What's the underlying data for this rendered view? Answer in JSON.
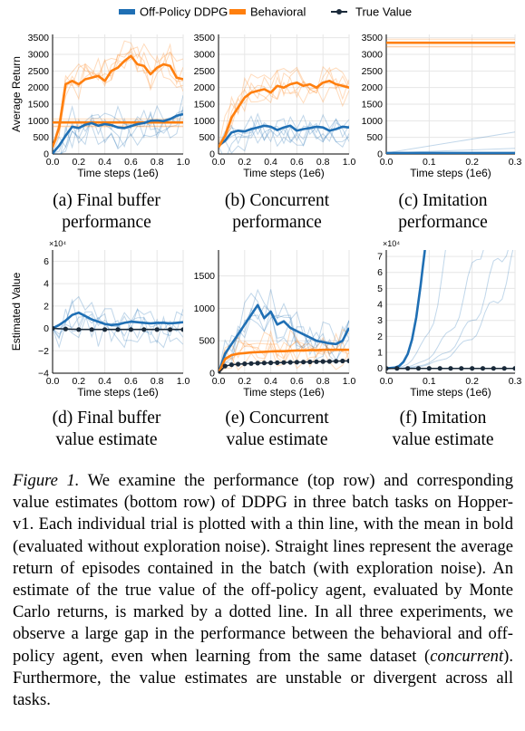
{
  "legend": {
    "offpolicy": "Off-Policy DDPG",
    "behavioral": "Behavioral",
    "truevalue": "True Value"
  },
  "colors": {
    "offpolicy": "#1f6fb4",
    "behavioral": "#ff7f0e",
    "truevalue": "#1a2a3a",
    "grid": "#e6e6e6"
  },
  "captions": {
    "a": [
      "(a) Final buffer",
      "performance"
    ],
    "b": [
      "(b) Concurrent",
      "performance"
    ],
    "c": [
      "(c) Imitation",
      "performance"
    ],
    "d": [
      "(d) Final buffer",
      "value estimate"
    ],
    "e": [
      "(e) Concurrent",
      "value estimate"
    ],
    "f": [
      "(f) Imitation",
      "value estimate"
    ]
  },
  "figure_caption": {
    "label": "Figure 1.",
    "text_before": " We examine the performance (top row) and corresponding value estimates (bottom row) of DDPG in three batch tasks on Hopper-v1. Each individual trial is plotted with a thin line, with the mean in bold (evaluated without exploration noise). Straight lines represent the average return of episodes contained in the batch (with exploration noise). An estimate of the true value of the off-policy agent, evaluated by Monte Carlo returns, is marked by a dotted line. In all three experiments, we observe a large gap in the performance between the behavioral and off-policy agent, even when learning from the same dataset (",
    "emph": "concurrent",
    "text_after": "). Furthermore, the value estimates are unstable or divergent across all tasks."
  },
  "chart_data": [
    {
      "id": "a",
      "type": "line",
      "xlabel": "Time steps (1e6)",
      "ylabel": "Average Return",
      "xlim": [
        0,
        1.0
      ],
      "ylim": [
        0,
        3600
      ],
      "xticks": [
        "0.0",
        "0.2",
        "0.4",
        "0.6",
        "0.8",
        "1.0"
      ],
      "yticks": [
        "0",
        "500",
        "1000",
        "1500",
        "2000",
        "2500",
        "3000",
        "3500"
      ],
      "grid": true,
      "series": [
        {
          "name": "Off-Policy DDPG",
          "role": "mean",
          "x": [
            0,
            0.05,
            0.1,
            0.15,
            0.2,
            0.25,
            0.3,
            0.35,
            0.4,
            0.45,
            0.5,
            0.55,
            0.6,
            0.65,
            0.7,
            0.75,
            0.8,
            0.85,
            0.9,
            0.95,
            1.0
          ],
          "y": [
            20,
            250,
            550,
            820,
            780,
            880,
            930,
            850,
            900,
            870,
            800,
            780,
            840,
            900,
            930,
            1000,
            1010,
            990,
            1050,
            1150,
            1200
          ]
        },
        {
          "name": "Behavioral",
          "role": "mean",
          "x": [
            0,
            0.05,
            0.1,
            0.15,
            0.2,
            0.25,
            0.3,
            0.35,
            0.4,
            0.45,
            0.5,
            0.55,
            0.6,
            0.65,
            0.7,
            0.75,
            0.8,
            0.85,
            0.9,
            0.95,
            1.0
          ],
          "y": [
            200,
            800,
            2100,
            2200,
            2100,
            2250,
            2300,
            2350,
            2200,
            2500,
            2600,
            2800,
            2950,
            2700,
            2650,
            2400,
            2600,
            2700,
            2650,
            2300,
            2250
          ]
        },
        {
          "name": "Behavioral",
          "role": "batch-average",
          "x": [
            0,
            1.0
          ],
          "y": [
            950,
            950
          ]
        }
      ]
    },
    {
      "id": "b",
      "type": "line",
      "xlabel": "Time steps (1e6)",
      "xlim": [
        0,
        1.0
      ],
      "ylim": [
        0,
        3600
      ],
      "xticks": [
        "0.0",
        "0.2",
        "0.4",
        "0.6",
        "0.8",
        "1.0"
      ],
      "yticks": [
        "0",
        "500",
        "1000",
        "1500",
        "2000",
        "2500",
        "3000",
        "3500"
      ],
      "grid": true,
      "series": [
        {
          "name": "Off-Policy DDPG",
          "role": "mean",
          "x": [
            0,
            0.05,
            0.1,
            0.15,
            0.2,
            0.25,
            0.3,
            0.35,
            0.4,
            0.45,
            0.5,
            0.55,
            0.6,
            0.65,
            0.7,
            0.75,
            0.8,
            0.85,
            0.9,
            0.95,
            1.0
          ],
          "y": [
            250,
            400,
            650,
            700,
            680,
            750,
            800,
            850,
            820,
            720,
            800,
            850,
            700,
            750,
            780,
            820,
            800,
            700,
            750,
            820,
            800
          ]
        },
        {
          "name": "Behavioral",
          "role": "mean",
          "x": [
            0,
            0.05,
            0.1,
            0.15,
            0.2,
            0.25,
            0.3,
            0.35,
            0.4,
            0.45,
            0.5,
            0.55,
            0.6,
            0.65,
            0.7,
            0.75,
            0.8,
            0.85,
            0.9,
            0.95,
            1.0
          ],
          "y": [
            200,
            550,
            1100,
            1400,
            1700,
            1850,
            1900,
            1950,
            1850,
            2050,
            2000,
            2100,
            2150,
            2050,
            2100,
            2000,
            2150,
            2200,
            2100,
            2050,
            2000
          ]
        }
      ]
    },
    {
      "id": "c",
      "type": "line",
      "xlabel": "Time steps (1e6)",
      "xlim": [
        0,
        0.3
      ],
      "ylim": [
        0,
        3600
      ],
      "xticks": [
        "0.0",
        "0.1",
        "0.2",
        "0.3"
      ],
      "yticks": [
        "0",
        "500",
        "1000",
        "1500",
        "2000",
        "2500",
        "3000",
        "3500"
      ],
      "grid": true,
      "series": [
        {
          "name": "Off-Policy DDPG",
          "role": "mean",
          "x": [
            0,
            0.3
          ],
          "y": [
            30,
            30
          ]
        },
        {
          "name": "Behavioral",
          "role": "batch-average",
          "x": [
            0,
            0.3
          ],
          "y": [
            3350,
            3350
          ]
        }
      ]
    },
    {
      "id": "d",
      "type": "line",
      "xlabel": "Time steps (1e6)",
      "ylabel": "Estimated Value",
      "ylabel_scale": "×10⁴",
      "xlim": [
        0,
        1.0
      ],
      "ylim": [
        -4,
        7
      ],
      "xticks": [
        "0.0",
        "0.2",
        "0.4",
        "0.6",
        "0.8",
        "1.0"
      ],
      "yticks": [
        "−4",
        "−2",
        "0",
        "2",
        "4",
        "6"
      ],
      "grid": true,
      "series": [
        {
          "name": "Off-Policy DDPG",
          "role": "mean",
          "x": [
            0,
            0.05,
            0.1,
            0.15,
            0.2,
            0.25,
            0.3,
            0.35,
            0.4,
            0.45,
            0.5,
            0.55,
            0.6,
            0.65,
            0.7,
            0.75,
            0.8,
            0.85,
            0.9,
            0.95,
            1.0
          ],
          "y": [
            0,
            0.3,
            0.7,
            1.2,
            1.4,
            1.1,
            0.8,
            0.6,
            0.4,
            0.3,
            0.35,
            0.5,
            0.6,
            0.55,
            0.5,
            0.45,
            0.5,
            0.5,
            0.45,
            0.5,
            0.55
          ]
        },
        {
          "name": "True Value",
          "role": "true",
          "x": [
            0,
            0.1,
            0.2,
            0.3,
            0.4,
            0.5,
            0.6,
            0.7,
            0.8,
            0.9,
            1.0
          ],
          "y": [
            0,
            -0.05,
            -0.1,
            -0.1,
            -0.1,
            -0.1,
            -0.1,
            -0.1,
            -0.1,
            -0.1,
            -0.1
          ]
        }
      ]
    },
    {
      "id": "e",
      "type": "line",
      "xlabel": "Time steps (1e6)",
      "xlim": [
        0,
        1.0
      ],
      "ylim": [
        0,
        1900
      ],
      "xticks": [
        "0.0",
        "0.2",
        "0.4",
        "0.6",
        "0.8",
        "1.0"
      ],
      "yticks": [
        "0",
        "500",
        "1000",
        "1500"
      ],
      "grid": true,
      "series": [
        {
          "name": "Off-Policy DDPG",
          "role": "mean",
          "x": [
            0,
            0.05,
            0.1,
            0.15,
            0.2,
            0.25,
            0.3,
            0.35,
            0.4,
            0.45,
            0.5,
            0.55,
            0.6,
            0.65,
            0.7,
            0.75,
            0.8,
            0.85,
            0.9,
            0.95,
            1.0
          ],
          "y": [
            0,
            300,
            450,
            600,
            750,
            900,
            1050,
            850,
            950,
            750,
            800,
            700,
            650,
            600,
            550,
            500,
            480,
            460,
            450,
            500,
            700
          ]
        },
        {
          "name": "Behavioral",
          "role": "mean",
          "x": [
            0,
            0.05,
            0.1,
            0.15,
            0.2,
            0.25,
            0.3,
            0.35,
            0.4,
            0.45,
            0.5,
            0.55,
            0.6,
            0.65,
            0.7,
            0.75,
            0.8,
            0.85,
            0.9,
            0.95,
            1.0
          ],
          "y": [
            0,
            220,
            280,
            300,
            310,
            320,
            325,
            330,
            335,
            340,
            340,
            345,
            350,
            350,
            355,
            355,
            360,
            360,
            360,
            360,
            360
          ]
        },
        {
          "name": "True Value",
          "role": "true",
          "x": [
            0,
            0.05,
            0.1,
            0.15,
            0.2,
            0.25,
            0.3,
            0.35,
            0.4,
            0.45,
            0.5,
            0.55,
            0.6,
            0.65,
            0.7,
            0.75,
            0.8,
            0.85,
            0.9,
            0.95,
            1.0
          ],
          "y": [
            0,
            110,
            130,
            140,
            145,
            150,
            155,
            158,
            160,
            162,
            165,
            168,
            170,
            172,
            175,
            178,
            180,
            182,
            185,
            188,
            190
          ]
        }
      ]
    },
    {
      "id": "f",
      "type": "line",
      "xlabel": "Time steps (1e6)",
      "ylabel_scale": "×10⁴",
      "xlim": [
        0,
        0.3
      ],
      "ylim": [
        -0.3,
        7.4
      ],
      "xticks": [
        "0.0",
        "0.1",
        "0.2",
        "0.3"
      ],
      "yticks": [
        "0",
        "1",
        "2",
        "3",
        "4",
        "5",
        "6",
        "7"
      ],
      "grid": true,
      "series": [
        {
          "name": "Off-Policy DDPG",
          "role": "mean",
          "x": [
            0,
            0.02,
            0.03,
            0.04,
            0.05,
            0.06,
            0.07,
            0.08,
            0.085,
            0.09
          ],
          "y": [
            0,
            0.05,
            0.15,
            0.4,
            0.9,
            1.8,
            3.2,
            5.2,
            6.3,
            7.4
          ]
        },
        {
          "name": "True Value",
          "role": "true",
          "x": [
            0,
            0.025,
            0.05,
            0.075,
            0.1,
            0.125,
            0.15,
            0.175,
            0.2,
            0.225,
            0.25,
            0.275,
            0.3
          ],
          "y": [
            0,
            0,
            0,
            0,
            0,
            0,
            0,
            0,
            0,
            0,
            0,
            0,
            0
          ]
        }
      ]
    }
  ]
}
